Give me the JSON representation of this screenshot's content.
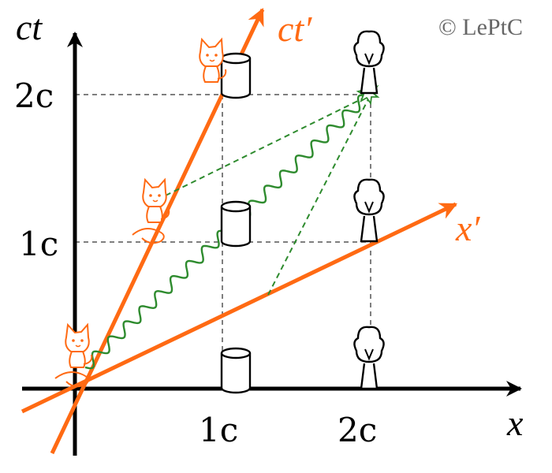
{
  "copyright": "© LePtC",
  "axes": {
    "x_label": "x",
    "y_label": "ct",
    "x_prime_label": "x′",
    "ct_prime_label": "ct′"
  },
  "ticks": {
    "x": [
      "1c",
      "2c"
    ],
    "y": [
      "1c",
      "2c"
    ]
  },
  "colors": {
    "axis": "#000000",
    "moving_frame": "#ff6a13",
    "light_signal": "#2e8b2e",
    "grid": "#555555"
  },
  "objects": {
    "cat_icon": "cat-figure",
    "can_icon": "cylinder-can",
    "tree_icon": "tree",
    "flash_icon": "flash-burst"
  }
}
